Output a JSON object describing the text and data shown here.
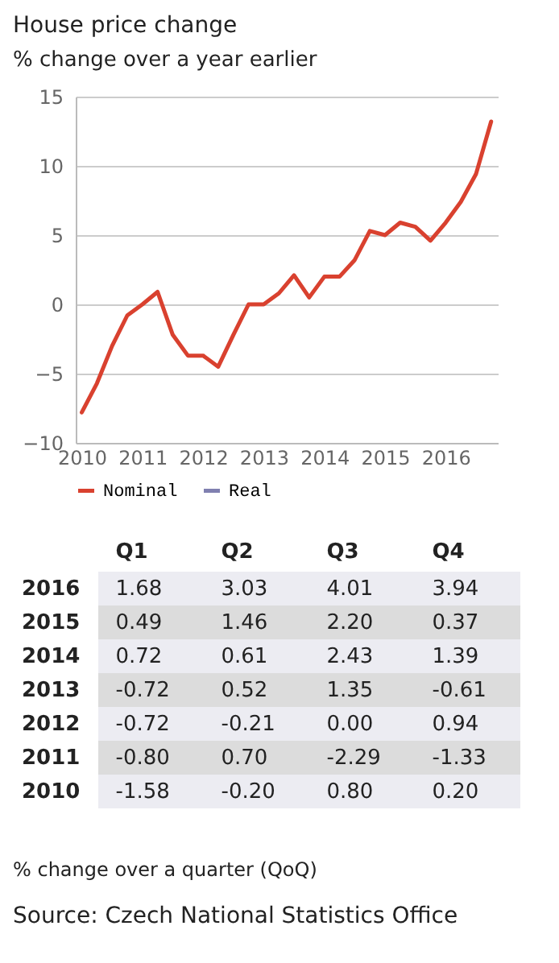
{
  "chart_data": [
    {
      "type": "line",
      "title": "House price change",
      "subtitle": "% change over a year earlier",
      "x": [
        2010,
        2010.25,
        2010.5,
        2010.75,
        2011,
        2011.25,
        2011.5,
        2011.75,
        2012,
        2012.25,
        2012.5,
        2012.75,
        2013,
        2013.25,
        2013.5,
        2013.75,
        2014,
        2014.25,
        2014.5,
        2014.75,
        2015,
        2015.25,
        2015.5,
        2015.75,
        2016,
        2016.25,
        2016.5,
        2016.75
      ],
      "series": [
        {
          "name": "Nominal",
          "color": "#d9412f",
          "values": [
            -7.8,
            -5.7,
            -3.0,
            -0.8,
            0.0,
            0.9,
            -2.2,
            -3.7,
            -3.7,
            -4.5,
            -2.2,
            0.0,
            0.0,
            0.8,
            2.1,
            0.5,
            2.0,
            2.0,
            3.2,
            5.3,
            5.0,
            5.9,
            5.6,
            4.6,
            5.9,
            7.4,
            9.4,
            13.2
          ]
        },
        {
          "name": "Real",
          "color": "#8080b0",
          "values": [
            null,
            null,
            null,
            null,
            null,
            null,
            null,
            null,
            null,
            null,
            null,
            null,
            null,
            null,
            null,
            null,
            null,
            null,
            null,
            null,
            null,
            null,
            null,
            null,
            null,
            null,
            null,
            null
          ]
        }
      ],
      "xlim": [
        2009.9,
        2016.86
      ],
      "xticks": [
        2010,
        2011,
        2012,
        2013,
        2014,
        2015,
        2016
      ],
      "ylim": [
        -10,
        15
      ],
      "yticks": [
        -10,
        -5,
        0,
        5,
        10,
        15
      ],
      "grid": "y",
      "legend": "bottom",
      "marker": "none",
      "line_style": "solid"
    },
    {
      "type": "heatmap",
      "categories": [
        "Q1",
        "Q2",
        "Q3",
        "Q4"
      ],
      "y_categories": [
        "2016",
        "2015",
        "2014",
        "2013",
        "2012",
        "2011",
        "2010"
      ],
      "cells": [
        [
          1.68,
          3.03,
          4.01,
          3.94
        ],
        [
          0.49,
          1.46,
          2.2,
          0.37
        ],
        [
          0.72,
          0.61,
          2.43,
          1.39
        ],
        [
          -0.72,
          0.52,
          1.35,
          -0.61
        ],
        [
          -0.72,
          -0.21,
          0.0,
          0.94
        ],
        [
          -0.8,
          0.7,
          -2.29,
          -1.33
        ],
        [
          -1.58,
          -0.2,
          0.8,
          0.2
        ]
      ],
      "cell_labels": [
        [
          "1.68",
          "3.03",
          "4.01",
          "3.94"
        ],
        [
          "0.49",
          "1.46",
          "2.20",
          "0.37"
        ],
        [
          "0.72",
          "0.61",
          "2.43",
          "1.39"
        ],
        [
          "-0.72",
          "0.52",
          "1.35",
          "-0.61"
        ],
        [
          "-0.72",
          "-0.21",
          "0.00",
          "0.94"
        ],
        [
          "-0.80",
          "0.70",
          "-2.29",
          "-1.33"
        ],
        [
          "-1.58",
          "-0.20",
          "0.80",
          "0.20"
        ]
      ],
      "annotations": [
        "% change over a quarter (QoQ)",
        "Source: Czech National Statistics Office"
      ]
    }
  ]
}
